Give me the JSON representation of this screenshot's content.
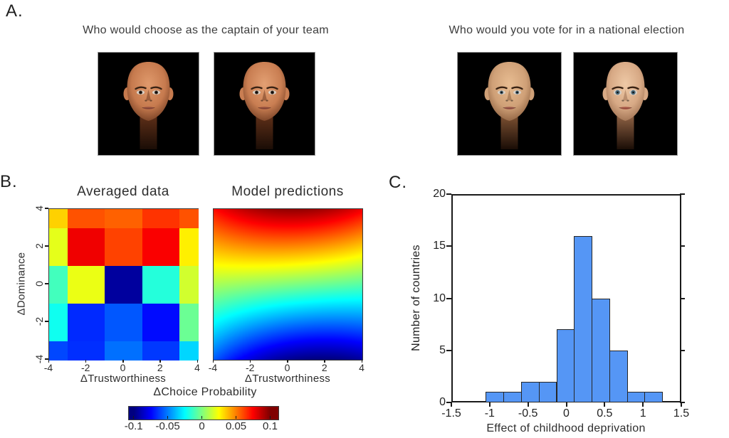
{
  "labels": {
    "a": "A.",
    "b": "B.",
    "c": "C."
  },
  "panel_a": {
    "left_question": "Who would choose as the captain of your team",
    "right_question": "Who would you vote for in a national election",
    "faces": [
      {
        "name": "captain-face-1",
        "skin_light": "#e09a6c",
        "skin_base": "#c67a4e",
        "skin_dark": "#5f2f18",
        "lip": "#a05542",
        "iris": "#33241a",
        "eye_h": 3.0,
        "jaw": 1.0
      },
      {
        "name": "captain-face-2",
        "skin_light": "#e3a073",
        "skin_base": "#c97e52",
        "skin_dark": "#5f2f18",
        "lip": "#a05542",
        "iris": "#33241a",
        "eye_h": 3.0,
        "jaw": 1.0
      },
      {
        "name": "election-face-male",
        "skin_light": "#e8bd92",
        "skin_base": "#cfa077",
        "skin_dark": "#7d5132",
        "lip": "#a86050",
        "iris": "#46606e",
        "eye_h": 3.0,
        "jaw": 1.0
      },
      {
        "name": "election-face-female",
        "skin_light": "#eec9a6",
        "skin_base": "#d7a985",
        "skin_dark": "#8f6244",
        "lip": "#b4604e",
        "iris": "#4a6878",
        "eye_h": 3.9,
        "jaw": 0.9
      }
    ]
  },
  "panel_b": {
    "colorbar_title": "ΔChoice Probability",
    "colorbar_tick_labels": [
      "-0.1",
      "-0.05",
      "0",
      "0.05",
      "0.1"
    ],
    "colorbar_tick_values": [
      -0.1,
      -0.05,
      0,
      0.05,
      0.1
    ]
  },
  "chart_data": [
    {
      "type": "heatmap",
      "title": "Averaged data",
      "xlabel": "ΔTrustworthiness",
      "ylabel": "ΔDominance",
      "x": [
        -4,
        -2,
        0,
        2,
        4
      ],
      "y": [
        4,
        2,
        0,
        -2,
        -4
      ],
      "xtick_labels": [
        "-4",
        "-2",
        "0",
        "2",
        "4"
      ],
      "ytick_labels": [
        "4",
        "2",
        "0",
        "-2",
        "-4"
      ],
      "colormap": "jet",
      "clim": [
        -0.1,
        0.1
      ],
      "grid_note": "rows top-to-bottom correspond to y=[4,2,0,-2,-4]; edge cells are half-width/half-height (surface-style grid)",
      "values": [
        [
          0.034,
          0.059,
          0.056,
          0.065,
          0.059
        ],
        [
          0.02,
          0.078,
          0.062,
          0.076,
          0.028
        ],
        [
          -0.012,
          0.021,
          -0.094,
          -0.018,
          0.016
        ],
        [
          -0.022,
          -0.067,
          -0.058,
          -0.073,
          -0.004
        ],
        [
          -0.061,
          -0.066,
          -0.053,
          -0.064,
          -0.033
        ]
      ]
    },
    {
      "type": "heatmap",
      "subtype": "smooth-surface",
      "title": "Model predictions",
      "xlabel": "ΔTrustworthiness",
      "x_range": [
        -4,
        4
      ],
      "y_range": [
        -4,
        4
      ],
      "xtick_labels": [
        "-4",
        "-2",
        "0",
        "2",
        "4"
      ],
      "colormap": "jet",
      "clim": [
        -0.1,
        0.1
      ],
      "surface_formula": "v = (d/4)*(gain - curve*(t - t_vertex)^2) - t_slope*t",
      "surface_params": {
        "gain": 0.0975,
        "curve": 0.0013,
        "t_vertex": 1,
        "t_slope": 0.002
      }
    },
    {
      "type": "bar",
      "subtype": "histogram",
      "title": "",
      "xlabel": "Effect of childhood deprivation",
      "ylabel": "Number of countries",
      "xlim": [
        -1.5,
        1.5
      ],
      "ylim": [
        0,
        20
      ],
      "xtick_labels": [
        "-1.5",
        "-1",
        "-0.5",
        "0",
        "0.5",
        "1",
        "1.5"
      ],
      "xtick_values": [
        -1.5,
        -1,
        -0.5,
        0,
        0.5,
        1,
        1.5
      ],
      "ytick_labels": [
        "0",
        "5",
        "10",
        "15",
        "20"
      ],
      "ytick_values": [
        0,
        5,
        10,
        15,
        20
      ],
      "bin_start": -1.05,
      "bin_width": 0.23,
      "counts": [
        1,
        1,
        2,
        2,
        7,
        16,
        10,
        5,
        1,
        1
      ],
      "bar_fill": "#5596f5",
      "bar_edge": "#262626"
    }
  ]
}
